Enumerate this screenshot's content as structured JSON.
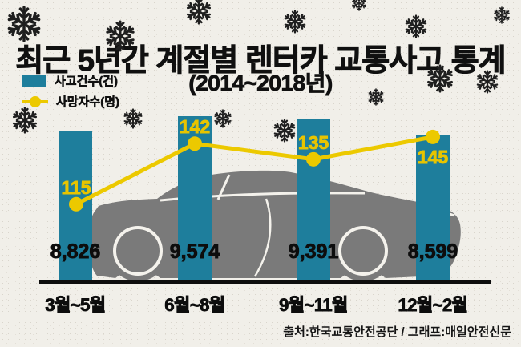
{
  "title": "최근 5년간 계절별 렌터카 교통사고 통계",
  "subtitle": "(2014~2018년)",
  "legend": {
    "accidents_label": "사고건수(건)",
    "deaths_label": "사망자수(명)"
  },
  "chart_data": {
    "type": "bar",
    "title": "최근 5년간 계절별 렌터카 교통사고 통계 (2014~2018년)",
    "categories": [
      "3월~5월",
      "6월~8월",
      "9월~11월",
      "12월~2월"
    ],
    "series": [
      {
        "name": "사고건수(건)",
        "type": "bar",
        "values": [
          8826,
          9574,
          9391,
          8599
        ],
        "display_labels": [
          "8,826",
          "9,574",
          "9,391",
          "8,599"
        ],
        "color": "#1e7e9c"
      },
      {
        "name": "사망자수(명)",
        "type": "line",
        "values": [
          115,
          142,
          135,
          145
        ],
        "display_labels": [
          "115",
          "142",
          "135",
          "145"
        ],
        "color": "#ecc900"
      }
    ],
    "xlabel": "",
    "ylabel": "",
    "grid": false,
    "legend_position": "top-left"
  },
  "footer": {
    "credit": "출처:한국교통안전공단 / 그래프:매일안전신문"
  },
  "colors": {
    "bar_teal": "#1e7e9c",
    "line_yellow": "#ecc900",
    "background_paper": "#f1efe9",
    "text_black": "#101010",
    "car_gray": "#7a7a7a",
    "snowflake_dark": "#1f1f1f"
  },
  "decor_icons": {
    "snowflake": "snowflake-icon",
    "car": "sports-car-silhouette-icon"
  }
}
